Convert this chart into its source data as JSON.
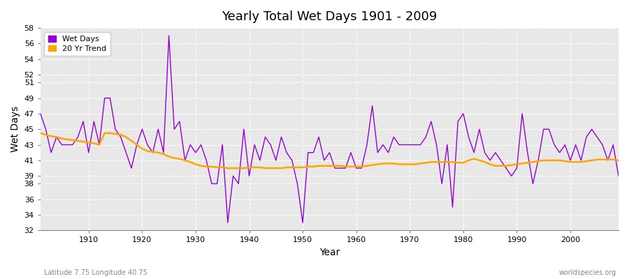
{
  "title": "Yearly Total Wet Days 1901 - 2009",
  "xlabel": "Year",
  "ylabel": "Wet Days",
  "subtitle": "Latitude 7.75 Longitude 40.75",
  "watermark": "worldspecies.org",
  "xlim": [
    1901,
    2009
  ],
  "ylim": [
    32,
    58
  ],
  "yticks": [
    32,
    34,
    36,
    38,
    39,
    41,
    43,
    45,
    47,
    49,
    51,
    52,
    54,
    56,
    58
  ],
  "xticks": [
    1910,
    1920,
    1930,
    1940,
    1950,
    1960,
    1970,
    1980,
    1990,
    2000
  ],
  "fig_bg_color": "#ffffff",
  "plot_bg_color": "#e8e8e8",
  "grid_color": "#ffffff",
  "wet_days_color": "#9400D3",
  "trend_color": "#FFA500",
  "wet_days": [
    47,
    45,
    42,
    44,
    43,
    43,
    43,
    44,
    46,
    42,
    46,
    43,
    49,
    49,
    45,
    44,
    42,
    40,
    43,
    45,
    43,
    42,
    45,
    42,
    57,
    45,
    46,
    41,
    43,
    42,
    43,
    41,
    38,
    38,
    43,
    33,
    39,
    38,
    45,
    39,
    43,
    41,
    44,
    43,
    41,
    44,
    42,
    41,
    38,
    33,
    42,
    42,
    44,
    41,
    42,
    40,
    40,
    40,
    42,
    40,
    40,
    43,
    48,
    42,
    43,
    42,
    44,
    43,
    43,
    43,
    43,
    43,
    44,
    46,
    43,
    38,
    43,
    35,
    46,
    47,
    44,
    42,
    45,
    42,
    41,
    42,
    41,
    40,
    39,
    40,
    47,
    42,
    38,
    41,
    45,
    45,
    43,
    42,
    43,
    41,
    43,
    41,
    44,
    45,
    44,
    43,
    41,
    43,
    39
  ],
  "trend": [
    44.5,
    44.3,
    44.1,
    44.0,
    43.8,
    43.7,
    43.6,
    43.5,
    43.4,
    43.3,
    43.2,
    43.0,
    44.5,
    44.5,
    44.4,
    44.3,
    44.0,
    43.5,
    43.0,
    42.5,
    42.2,
    42.1,
    42.0,
    41.8,
    41.5,
    41.3,
    41.2,
    41.0,
    40.8,
    40.5,
    40.3,
    40.2,
    40.2,
    40.1,
    40.1,
    40.0,
    40.0,
    40.0,
    40.0,
    40.1,
    40.1,
    40.1,
    40.0,
    40.0,
    40.0,
    40.0,
    40.1,
    40.1,
    40.1,
    40.1,
    40.2,
    40.2,
    40.3,
    40.3,
    40.3,
    40.3,
    40.3,
    40.2,
    40.2,
    40.2,
    40.2,
    40.3,
    40.4,
    40.5,
    40.6,
    40.6,
    40.6,
    40.5,
    40.5,
    40.5,
    40.5,
    40.6,
    40.7,
    40.8,
    40.8,
    40.8,
    40.8,
    40.8,
    40.7,
    40.7,
    41.0,
    41.2,
    41.0,
    40.8,
    40.5,
    40.3,
    40.3,
    40.3,
    40.4,
    40.5,
    40.6,
    40.7,
    40.8,
    40.9,
    41.0,
    41.0,
    41.0,
    41.0,
    40.9,
    40.8,
    40.8,
    40.8,
    40.9,
    41.0,
    41.1,
    41.1,
    41.1,
    41.1,
    41.0
  ]
}
